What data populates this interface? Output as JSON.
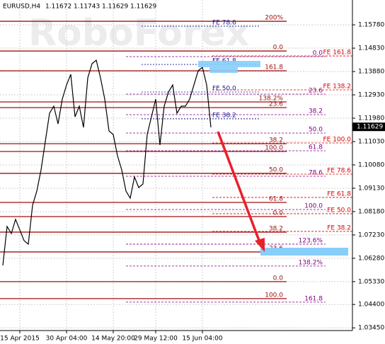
{
  "chart_data": {
    "type": "line",
    "symbol": "EURUSD,H4",
    "ohlc": [
      1.11672,
      1.11743,
      1.11629,
      1.11629
    ],
    "watermark": "RoboForex",
    "current_price": 1.11629,
    "categories": [
      null,
      null,
      null,
      null,
      "15 Apr 2015",
      null,
      null,
      null,
      null,
      null,
      null,
      null,
      null,
      null,
      null,
      "30 Apr 04:00",
      null,
      null,
      null,
      null,
      null,
      null,
      null,
      null,
      null,
      null,
      "14 May 20:00",
      null,
      null,
      null,
      null,
      null,
      null,
      null,
      null,
      null,
      "29 May 12:00",
      null,
      null,
      null,
      null,
      null,
      null,
      null,
      null,
      null,
      null,
      "15 Jun 04:00",
      null,
      null
    ],
    "series": [
      {
        "name": "EURUSD",
        "color": "#000000",
        "values": [
          1.05992,
          1.07575,
          1.07288,
          1.07863,
          1.07432,
          1.07,
          1.06856,
          1.08439,
          1.09015,
          1.09878,
          1.1103,
          1.12182,
          1.12469,
          1.1175,
          1.12757,
          1.13333,
          1.13765,
          1.12038,
          1.12469,
          1.11606,
          1.13621,
          1.14197,
          1.14341,
          1.13621,
          1.12757,
          1.11462,
          1.11318,
          1.10454,
          1.09878,
          1.09015,
          1.08727,
          1.09591,
          1.09159,
          1.09303,
          1.11318,
          1.12038,
          1.12757,
          1.10886,
          1.12469,
          1.13045,
          1.13333,
          1.12182,
          1.12469,
          1.12469,
          1.12757,
          1.13333,
          1.13909,
          1.14053,
          1.13333,
          1.11606
        ]
      }
    ],
    "ylim": [
      1.0334,
      1.1679
    ],
    "yticks": [
      {
        "value": 1.1578,
        "label": "1.15780"
      },
      {
        "value": 1.1483,
        "label": "1.14830"
      },
      {
        "value": 1.1388,
        "label": "1.13880"
      },
      {
        "value": 1.1293,
        "label": "1.12930"
      },
      {
        "value": 1.1198,
        "label": "1.11980"
      },
      {
        "value": 1.1103,
        "label": "1.11030"
      },
      {
        "value": 1.1008,
        "label": "1.10080"
      },
      {
        "value": 1.0913,
        "label": "1.09130"
      },
      {
        "value": 1.0818,
        "label": "1.08180"
      },
      {
        "value": 1.0723,
        "label": "1.07230"
      },
      {
        "value": 1.0628,
        "label": "1.06280"
      },
      {
        "value": 1.0533,
        "label": "1.05330"
      },
      {
        "value": 1.044,
        "label": "1.04400"
      },
      {
        "value": 1.0345,
        "label": "1.03450"
      }
    ],
    "grid": true,
    "levels": [
      {
        "label": "200%",
        "price": 1.15924,
        "style": "solid",
        "color": "#a01010"
      },
      {
        "label": "0.0",
        "price": 1.14715,
        "style": "solid",
        "color": "#a01010"
      },
      {
        "label": "161.8",
        "price": 1.13909,
        "style": "solid",
        "color": "#a01010"
      },
      {
        "label": "138.2%",
        "price": 1.12642,
        "style": "solid",
        "color": "#a01010"
      },
      {
        "label": "23.6",
        "price": 1.12412,
        "style": "solid",
        "color": "#a01010"
      },
      {
        "label": "38.2",
        "price": 1.10944,
        "style": "solid",
        "color": "#a01010"
      },
      {
        "label": "100.0",
        "price": 1.10627,
        "style": "solid",
        "color": "#a01010"
      },
      {
        "label": "50.0",
        "price": 1.09735,
        "style": "solid",
        "color": "#a01010"
      },
      {
        "label": "61.8",
        "price": 1.08554,
        "style": "solid",
        "color": "#a01010"
      },
      {
        "label": "0.0",
        "price": 1.07978,
        "style": "solid",
        "color": "#a01010"
      },
      {
        "label": "38.2",
        "price": 1.07345,
        "style": "solid",
        "color": "#a01010"
      },
      {
        "label": "23.6",
        "price": 1.06539,
        "style": "solid",
        "color": "#a01010"
      },
      {
        "label": "0.0",
        "price": 1.0533,
        "style": "solid",
        "color": "#a01010"
      },
      {
        "label": "100.0",
        "price": 1.04639,
        "style": "solid",
        "color": "#a01010"
      },
      {
        "label": "0.0",
        "price": 1.14485,
        "style": "dashed",
        "color": "#800080"
      },
      {
        "label": "23.6",
        "price": 1.12959,
        "style": "dashed",
        "color": "#800080"
      },
      {
        "label": "38.2",
        "price": 1.12124,
        "style": "dashed",
        "color": "#800080"
      },
      {
        "label": "50.0",
        "price": 1.11375,
        "style": "dashed",
        "color": "#800080"
      },
      {
        "label": "61.8",
        "price": 1.10656,
        "style": "dashed",
        "color": "#800080"
      },
      {
        "label": "78.6",
        "price": 1.09619,
        "style": "dashed",
        "color": "#800080"
      },
      {
        "label": "100.0",
        "price": 1.08266,
        "style": "dashed",
        "color": "#800080"
      },
      {
        "label": "123.6%",
        "price": 1.06856,
        "style": "dashed",
        "color": "#800080"
      },
      {
        "label": "138.2%",
        "price": 1.05964,
        "style": "dashed",
        "color": "#800080"
      },
      {
        "label": "161.8",
        "price": 1.04495,
        "style": "dashed",
        "color": "#800080"
      },
      {
        "label": "FE 161.8",
        "price": 1.14513,
        "style": "fe",
        "color": "#e00000"
      },
      {
        "label": "FE 138.2",
        "price": 1.13132,
        "style": "fe",
        "color": "#e00000"
      },
      {
        "label": "FE 100.0",
        "price": 1.10973,
        "style": "fe",
        "color": "#e00000"
      },
      {
        "label": "FE 78.6",
        "price": 1.09706,
        "style": "fe",
        "color": "#e00000"
      },
      {
        "label": "FE 61.8",
        "price": 1.08756,
        "style": "fe",
        "color": "#e00000"
      },
      {
        "label": "FE 50.0",
        "price": 1.08094,
        "style": "fe",
        "color": "#e00000"
      },
      {
        "label": "FE 38.2",
        "price": 1.07374,
        "style": "fe",
        "color": "#e00000"
      },
      {
        "label": "FE 78.6",
        "price": 1.15722,
        "style": "fe-inner",
        "color": "#1a1a9a"
      },
      {
        "label": "FE 61.8",
        "price": 1.14168,
        "style": "fe-inner",
        "color": "#1a1a9a"
      },
      {
        "label": "FE 50.0",
        "price": 1.13045,
        "style": "fe-inner",
        "color": "#1a1a9a"
      },
      {
        "label": "FE 38.2",
        "price": 1.11953,
        "style": "fe-inner",
        "color": "#1a1a9a"
      }
    ]
  }
}
